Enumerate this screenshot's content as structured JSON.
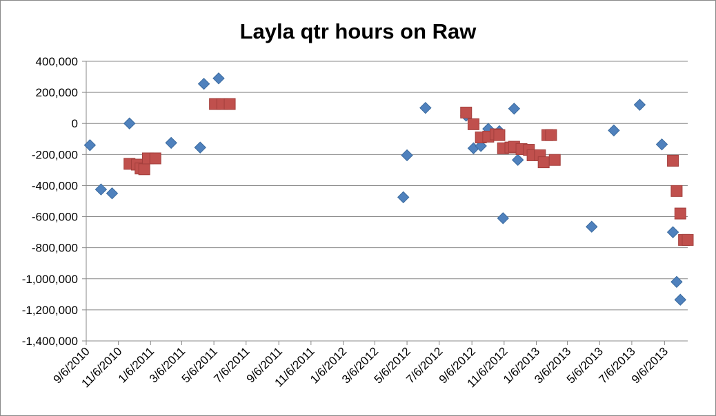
{
  "chart_data": {
    "type": "scatter",
    "title": "Layla qtr hours on Raw",
    "xlabel": "",
    "ylabel": "",
    "xlim": [
      "2010-09-06",
      "2013-10-20"
    ],
    "ylim": [
      -1400000,
      400000
    ],
    "yticks": [
      400000,
      200000,
      0,
      -200000,
      -400000,
      -600000,
      -800000,
      -1000000,
      -1200000,
      -1400000
    ],
    "ytick_labels": [
      "400,000",
      "200,000",
      "0",
      "-200,000",
      "-400,000",
      "-600,000",
      "-800,000",
      "-1,000,000",
      "-1,200,000",
      "-1,400,000"
    ],
    "xticks": [
      "2010-09-06",
      "2010-11-06",
      "2011-01-06",
      "2011-03-06",
      "2011-05-06",
      "2011-07-06",
      "2011-09-06",
      "2011-11-06",
      "2012-01-06",
      "2012-03-06",
      "2012-05-06",
      "2012-07-06",
      "2012-09-06",
      "2012-11-06",
      "2013-01-06",
      "2013-03-06",
      "2013-05-06",
      "2013-07-06",
      "2013-09-06"
    ],
    "xtick_labels": [
      "9/6/2010",
      "11/6/2010",
      "1/6/2011",
      "3/6/2011",
      "5/6/2011",
      "7/6/2011",
      "9/6/2011",
      "11/6/2011",
      "1/6/2012",
      "3/6/2012",
      "5/6/2012",
      "7/6/2012",
      "9/6/2012",
      "11/6/2012",
      "1/6/2013",
      "3/6/2013",
      "5/6/2013",
      "7/6/2013",
      "9/6/2013"
    ],
    "grid": "horizontal",
    "legend": "none",
    "series": [
      {
        "marker": "diamond",
        "color": "#4F81BD",
        "points": [
          {
            "x": "2010-09-13",
            "y": -140000
          },
          {
            "x": "2010-10-04",
            "y": -425000
          },
          {
            "x": "2010-10-25",
            "y": -450000
          },
          {
            "x": "2010-11-27",
            "y": 0
          },
          {
            "x": "2011-02-14",
            "y": -125000
          },
          {
            "x": "2011-04-10",
            "y": -155000
          },
          {
            "x": "2011-04-17",
            "y": 255000
          },
          {
            "x": "2011-05-15",
            "y": 290000
          },
          {
            "x": "2012-04-29",
            "y": -475000
          },
          {
            "x": "2012-05-06",
            "y": -205000
          },
          {
            "x": "2012-06-10",
            "y": 100000
          },
          {
            "x": "2012-08-26",
            "y": 50000
          },
          {
            "x": "2012-09-09",
            "y": -160000
          },
          {
            "x": "2012-09-23",
            "y": -145000
          },
          {
            "x": "2012-10-07",
            "y": -35000
          },
          {
            "x": "2012-10-28",
            "y": -50000
          },
          {
            "x": "2012-11-04",
            "y": -610000
          },
          {
            "x": "2012-11-25",
            "y": 95000
          },
          {
            "x": "2012-12-02",
            "y": -235000
          },
          {
            "x": "2013-04-21",
            "y": -665000
          },
          {
            "x": "2013-06-02",
            "y": -45000
          },
          {
            "x": "2013-07-21",
            "y": 120000
          },
          {
            "x": "2013-09-01",
            "y": -135000
          },
          {
            "x": "2013-09-22",
            "y": -700000
          },
          {
            "x": "2013-09-29",
            "y": -1020000
          },
          {
            "x": "2013-10-06",
            "y": -1135000
          }
        ]
      },
      {
        "marker": "square",
        "color": "#C0504D",
        "points": [
          {
            "x": "2010-11-27",
            "y": -260000
          },
          {
            "x": "2010-12-11",
            "y": -265000
          },
          {
            "x": "2010-12-18",
            "y": -290000
          },
          {
            "x": "2010-12-25",
            "y": -295000
          },
          {
            "x": "2011-01-01",
            "y": -225000
          },
          {
            "x": "2011-01-15",
            "y": -225000
          },
          {
            "x": "2011-05-08",
            "y": 125000
          },
          {
            "x": "2011-05-22",
            "y": 125000
          },
          {
            "x": "2011-06-05",
            "y": 125000
          },
          {
            "x": "2012-08-26",
            "y": 70000
          },
          {
            "x": "2012-09-09",
            "y": -5000
          },
          {
            "x": "2012-09-23",
            "y": -90000
          },
          {
            "x": "2012-10-07",
            "y": -85000
          },
          {
            "x": "2012-10-21",
            "y": -70000
          },
          {
            "x": "2012-10-28",
            "y": -75000
          },
          {
            "x": "2012-11-04",
            "y": -160000
          },
          {
            "x": "2012-11-18",
            "y": -155000
          },
          {
            "x": "2012-11-25",
            "y": -150000
          },
          {
            "x": "2012-12-09",
            "y": -165000
          },
          {
            "x": "2012-12-23",
            "y": -170000
          },
          {
            "x": "2012-12-30",
            "y": -205000
          },
          {
            "x": "2013-01-13",
            "y": -205000
          },
          {
            "x": "2013-01-20",
            "y": -250000
          },
          {
            "x": "2013-01-27",
            "y": -75000
          },
          {
            "x": "2013-02-03",
            "y": -75000
          },
          {
            "x": "2013-02-10",
            "y": -235000
          },
          {
            "x": "2013-09-22",
            "y": -240000
          },
          {
            "x": "2013-09-29",
            "y": -435000
          },
          {
            "x": "2013-10-06",
            "y": -580000
          },
          {
            "x": "2013-10-13",
            "y": -750000
          },
          {
            "x": "2013-10-20",
            "y": -750000
          }
        ]
      }
    ]
  }
}
